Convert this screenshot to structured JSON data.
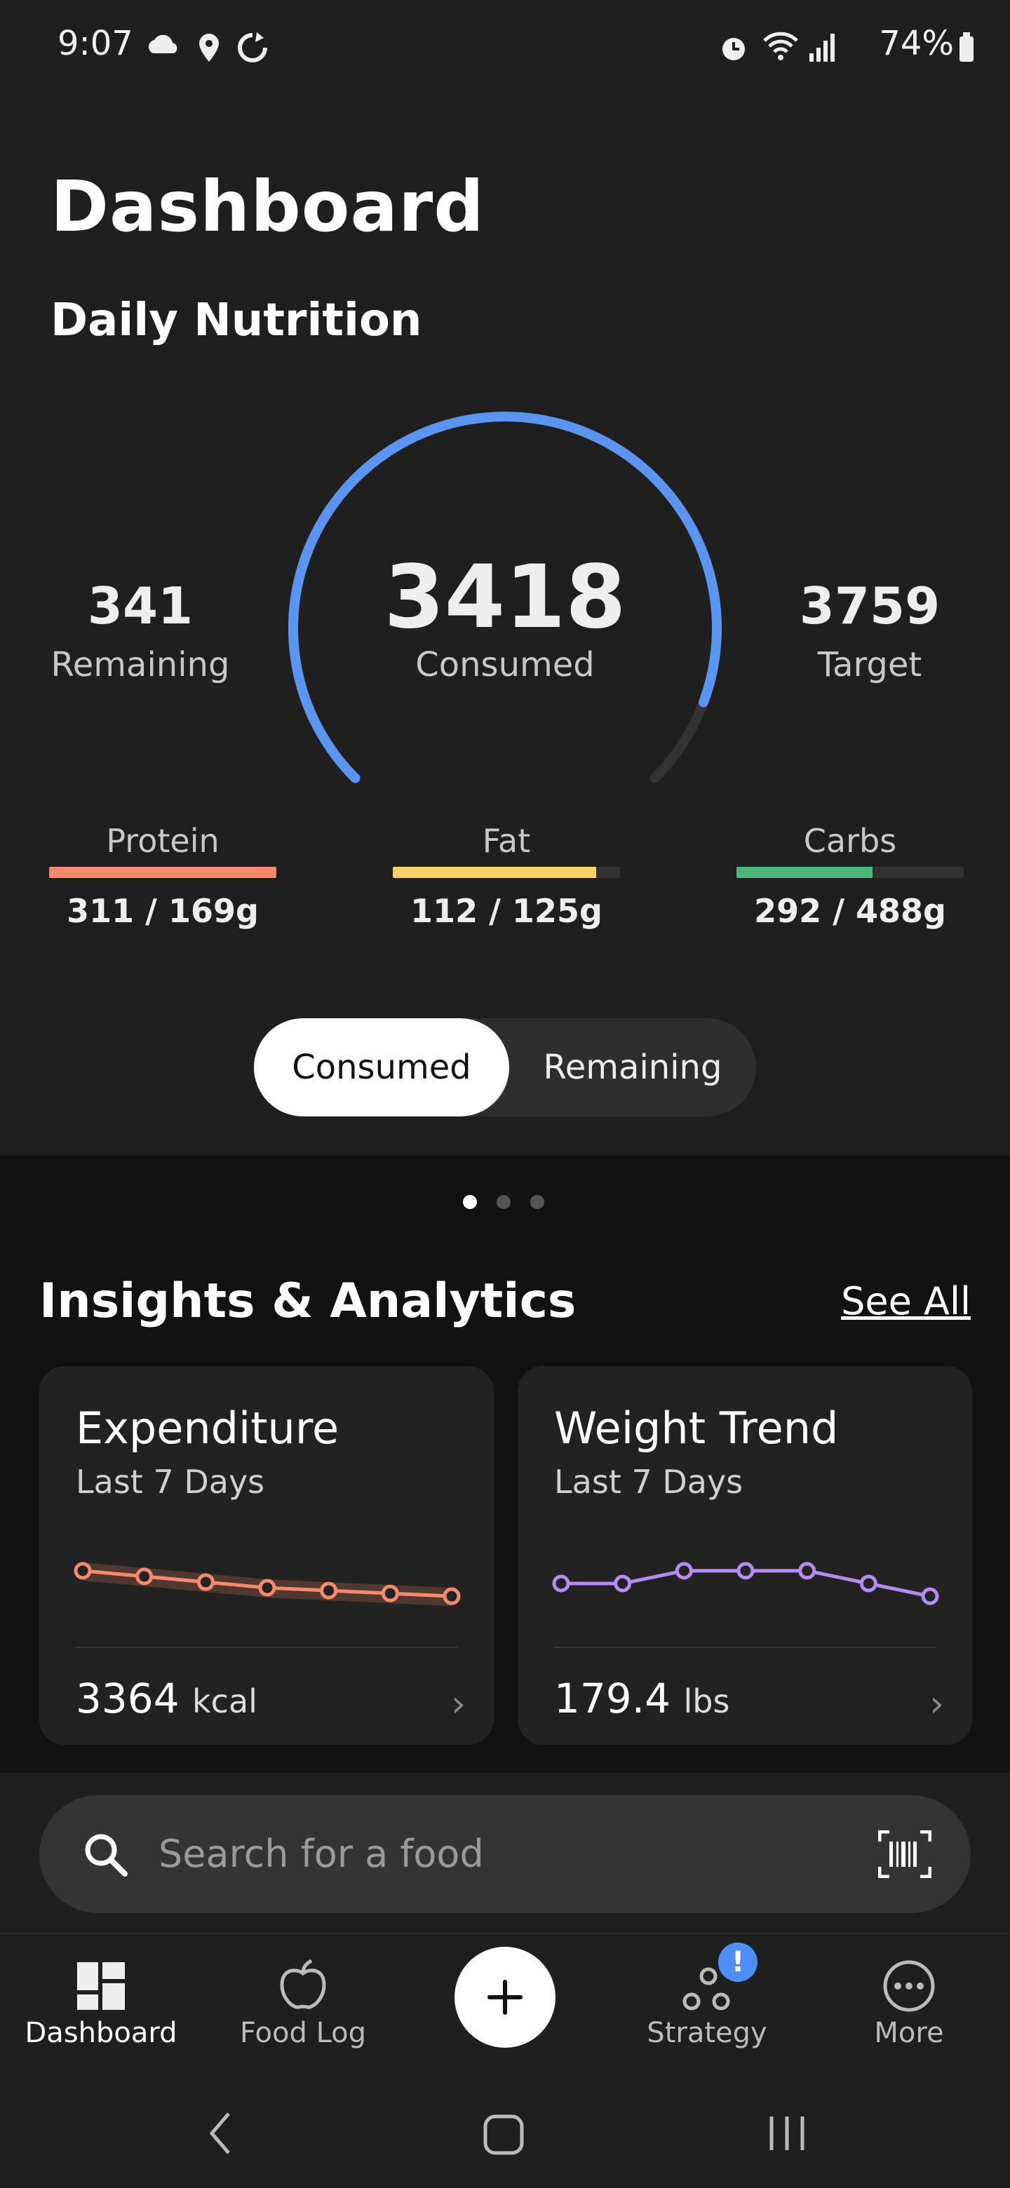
{
  "status_bar": {
    "time": "9:07",
    "battery": "74%"
  },
  "header": {
    "title": "Dashboard"
  },
  "daily_nutrition": {
    "section_title": "Daily Nutrition",
    "remaining": {
      "value": "341",
      "label": "Remaining"
    },
    "consumed": {
      "value": "3418",
      "label": "Consumed"
    },
    "target": {
      "value": "3759",
      "label": "Target"
    },
    "progress_fraction": 0.909,
    "accent_color": "#5b95f0",
    "macros": [
      {
        "name": "Protein",
        "value": "311 / 169g",
        "fill": 1.0,
        "color": "#f5896b"
      },
      {
        "name": "Fat",
        "value": "112 / 125g",
        "fill": 0.896,
        "color": "#f6d16a"
      },
      {
        "name": "Carbs",
        "value": "292 / 488g",
        "fill": 0.598,
        "color": "#4cb57a"
      }
    ]
  },
  "toggle": {
    "consumed": "Consumed",
    "remaining": "Remaining",
    "selected": "Consumed"
  },
  "pager": {
    "pages": 3,
    "current": 1
  },
  "insights": {
    "title": "Insights & Analytics",
    "see_all": "See All",
    "cards": [
      {
        "title": "Expenditure",
        "subtitle": "Last 7 Days",
        "value": "3364",
        "unit": "kcal",
        "color": "#f5896b",
        "series": [
          3380,
          3376,
          3372,
          3368,
          3366,
          3364,
          3362
        ]
      },
      {
        "title": "Weight Trend",
        "subtitle": "Last 7 Days",
        "value": "179.4",
        "unit": "lbs",
        "color": "#b58cf0",
        "series": [
          179.2,
          179.2,
          179.6,
          179.6,
          179.6,
          179.2,
          178.8
        ]
      }
    ]
  },
  "search": {
    "placeholder": "Search for a food"
  },
  "bottom_nav": {
    "items": [
      {
        "label": "Dashboard",
        "icon": "dashboard-icon"
      },
      {
        "label": "Food Log",
        "icon": "apple-icon"
      },
      {
        "label": "",
        "icon": "plus-icon"
      },
      {
        "label": "Strategy",
        "icon": "strategy-icon"
      },
      {
        "label": "More",
        "icon": "more-icon"
      }
    ],
    "strategy_badge": "!"
  }
}
